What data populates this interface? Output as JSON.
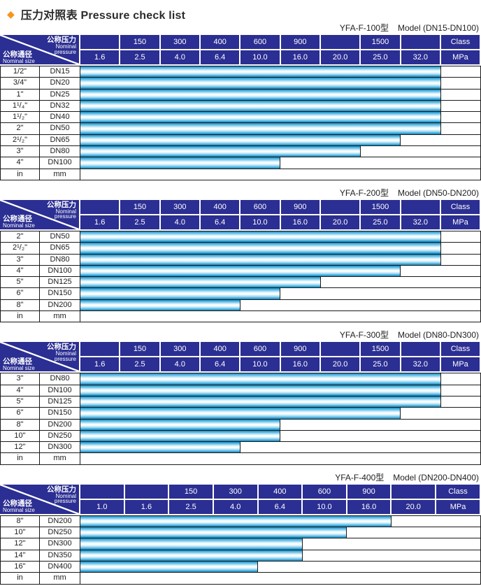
{
  "title": {
    "diamond": "◆",
    "zh": "压力对照表",
    "en": "Pressure check list"
  },
  "corner": {
    "pressure_zh": "公称压力",
    "pressure_en_1": "Nominal",
    "pressure_en_2": "pressure",
    "size_zh": "公称通径",
    "size_en": "Nominal size"
  },
  "colors": {
    "header_navy": "#2B2E92",
    "bar_blue": "#2FA2D5",
    "bar_highlight": "#FFFFFF",
    "grid_line": "#1A1A1A",
    "diamond_orange": "#F7941D"
  },
  "tables": [
    {
      "model": "YFA-F-100型",
      "range": "Model (DN15-DN100)",
      "class_cells": [
        "",
        "150",
        "300",
        "400",
        "600",
        "900",
        "",
        "1500",
        ""
      ],
      "class_label": "Class",
      "mpa_cells": [
        "1.6",
        "2.5",
        "4.0",
        "6.4",
        "10.0",
        "16.0",
        "20.0",
        "25.0",
        "32.0"
      ],
      "mpa_label": "MPa",
      "rows": [
        {
          "size": "1/2\"",
          "dn": "DN15",
          "bar_span": 9,
          "max_mpa": 32.0
        },
        {
          "size": "3/4\"",
          "dn": "DN20",
          "bar_span": 9,
          "max_mpa": 32.0
        },
        {
          "size": "1\"",
          "dn": "DN25",
          "bar_span": 9,
          "max_mpa": 32.0
        },
        {
          "size": "1¹/₄\"",
          "dn": "DN32",
          "bar_span": 9,
          "max_mpa": 32.0
        },
        {
          "size": "1¹/₂\"",
          "dn": "DN40",
          "bar_span": 9,
          "max_mpa": 32.0
        },
        {
          "size": "2\"",
          "dn": "DN50",
          "bar_span": 9,
          "max_mpa": 32.0
        },
        {
          "size": "2¹/₂\"",
          "dn": "DN65",
          "bar_span": 8,
          "max_mpa": 25.0
        },
        {
          "size": "3\"",
          "dn": "DN80",
          "bar_span": 7,
          "max_mpa": 20.0
        },
        {
          "size": "4\"",
          "dn": "DN100",
          "bar_span": 5,
          "max_mpa": 10.0
        },
        {
          "size": "in",
          "dn": "mm",
          "bar_span": 0,
          "max_mpa": null
        }
      ]
    },
    {
      "model": "YFA-F-200型",
      "range": "Model (DN50-DN200)",
      "class_cells": [
        "",
        "150",
        "300",
        "400",
        "600",
        "900",
        "",
        "1500",
        ""
      ],
      "class_label": "Class",
      "mpa_cells": [
        "1.6",
        "2.5",
        "4.0",
        "6.4",
        "10.0",
        "16.0",
        "20.0",
        "25.0",
        "32.0"
      ],
      "mpa_label": "MPa",
      "rows": [
        {
          "size": "2\"",
          "dn": "DN50",
          "bar_span": 9,
          "max_mpa": 32.0
        },
        {
          "size": "2¹/₂\"",
          "dn": "DN65",
          "bar_span": 9,
          "max_mpa": 32.0
        },
        {
          "size": "3\"",
          "dn": "DN80",
          "bar_span": 9,
          "max_mpa": 32.0
        },
        {
          "size": "4\"",
          "dn": "DN100",
          "bar_span": 8,
          "max_mpa": 25.0
        },
        {
          "size": "5\"",
          "dn": "DN125",
          "bar_span": 6,
          "max_mpa": 16.0
        },
        {
          "size": "6\"",
          "dn": "DN150",
          "bar_span": 5,
          "max_mpa": 10.0
        },
        {
          "size": "8\"",
          "dn": "DN200",
          "bar_span": 4,
          "max_mpa": 6.4
        },
        {
          "size": "in",
          "dn": "mm",
          "bar_span": 0,
          "max_mpa": null
        }
      ]
    },
    {
      "model": "YFA-F-300型",
      "range": "Model (DN80-DN300)",
      "class_cells": [
        "",
        "150",
        "300",
        "400",
        "600",
        "900",
        "",
        "1500",
        ""
      ],
      "class_label": "Class",
      "mpa_cells": [
        "1.6",
        "2.5",
        "4.0",
        "6.4",
        "10.0",
        "16.0",
        "20.0",
        "25.0",
        "32.0"
      ],
      "mpa_label": "MPa",
      "rows": [
        {
          "size": "3\"",
          "dn": "DN80",
          "bar_span": 9,
          "max_mpa": 32.0
        },
        {
          "size": "4\"",
          "dn": "DN100",
          "bar_span": 9,
          "max_mpa": 32.0
        },
        {
          "size": "5\"",
          "dn": "DN125",
          "bar_span": 9,
          "max_mpa": 32.0
        },
        {
          "size": "6\"",
          "dn": "DN150",
          "bar_span": 8,
          "max_mpa": 25.0
        },
        {
          "size": "8\"",
          "dn": "DN200",
          "bar_span": 5,
          "max_mpa": 10.0
        },
        {
          "size": "10\"",
          "dn": "DN250",
          "bar_span": 5,
          "max_mpa": 10.0
        },
        {
          "size": "12\"",
          "dn": "DN300",
          "bar_span": 4,
          "max_mpa": 6.4
        },
        {
          "size": "in",
          "dn": "mm",
          "bar_span": 0,
          "max_mpa": null
        }
      ]
    },
    {
      "model": "YFA-F-400型",
      "range": "Model (DN200-DN400)",
      "class_cells": [
        "",
        "",
        "150",
        "300",
        "400",
        "600",
        "900",
        ""
      ],
      "class_label": "Class",
      "mpa_cells": [
        "1.0",
        "1.6",
        "2.5",
        "4.0",
        "6.4",
        "10.0",
        "16.0",
        "20.0"
      ],
      "mpa_label": "MPa",
      "rows": [
        {
          "size": "8\"",
          "dn": "DN200",
          "bar_span": 7,
          "max_mpa": 16.0
        },
        {
          "size": "10\"",
          "dn": "DN250",
          "bar_span": 6,
          "max_mpa": 10.0
        },
        {
          "size": "12\"",
          "dn": "DN300",
          "bar_span": 5,
          "max_mpa": 6.4
        },
        {
          "size": "14\"",
          "dn": "DN350",
          "bar_span": 5,
          "max_mpa": 6.4
        },
        {
          "size": "16\"",
          "dn": "DN400",
          "bar_span": 4,
          "max_mpa": 4.0
        },
        {
          "size": "in",
          "dn": "mm",
          "bar_span": 0,
          "max_mpa": null
        }
      ]
    }
  ]
}
